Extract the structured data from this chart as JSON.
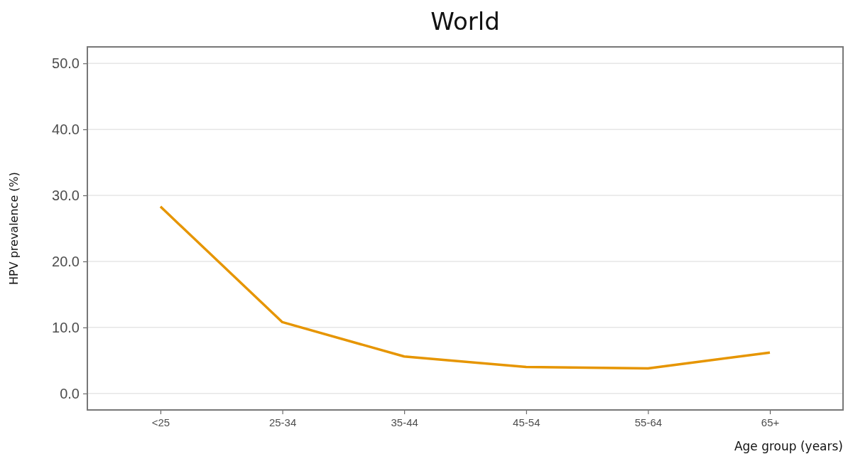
{
  "chart_data": {
    "type": "line",
    "title": "World",
    "xlabel": "Age group (years)",
    "ylabel": "HPV prevalence (%)",
    "categories": [
      "<25",
      "25-34",
      "35-44",
      "45-54",
      "55-64",
      "65+"
    ],
    "series": [
      {
        "color": "#e69500",
        "values": [
          28.3,
          10.8,
          5.6,
          4.0,
          3.8,
          6.2
        ]
      }
    ],
    "ylim": [
      -2.5,
      52.5
    ],
    "yticks": [
      {
        "value": 0,
        "label": "0.0"
      },
      {
        "value": 10,
        "label": "10.0"
      },
      {
        "value": 20,
        "label": "20.0"
      },
      {
        "value": 30,
        "label": "30.0"
      },
      {
        "value": 40,
        "label": "40.0"
      },
      {
        "value": 50,
        "label": "50.0"
      }
    ],
    "grid": "y",
    "marker": "none",
    "line_style": "solid"
  }
}
